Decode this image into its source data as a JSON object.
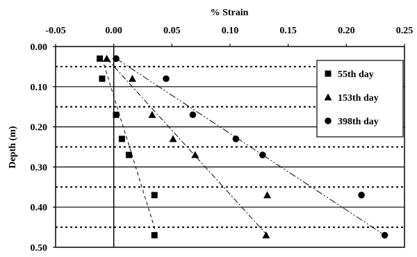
{
  "chart_data": {
    "type": "scatter",
    "xlabel": "% Strain",
    "ylabel": "Depth (m)",
    "xlim": [
      -0.05,
      0.25
    ],
    "ylim": [
      0.0,
      0.5
    ],
    "x_axis_position": "top",
    "y_inverted": true,
    "x_ticks": [
      -0.05,
      0.0,
      0.05,
      0.1,
      0.15,
      0.2,
      0.25
    ],
    "x_tick_labels": [
      "-0.05",
      "0.00",
      "0.05",
      "0.10",
      "0.15",
      "0.20",
      "0.25"
    ],
    "y_ticks": [
      0.0,
      0.1,
      0.2,
      0.3,
      0.4,
      0.5
    ],
    "y_tick_labels": [
      "0.00",
      "0.10",
      "0.20",
      "0.30",
      "0.40",
      "0.50"
    ],
    "grid": {
      "solid_y": [
        0.1,
        0.2,
        0.3,
        0.4
      ],
      "dotted_y": [
        0.05,
        0.15,
        0.25,
        0.35,
        0.45
      ]
    },
    "legend_position": "top-right",
    "series": [
      {
        "name": "55th day",
        "marker": "square",
        "points": [
          {
            "x": -0.012,
            "y": 0.03
          },
          {
            "x": -0.01,
            "y": 0.08
          },
          {
            "x": 0.002,
            "y": 0.17
          },
          {
            "x": 0.007,
            "y": 0.23
          },
          {
            "x": 0.013,
            "y": 0.27
          },
          {
            "x": 0.035,
            "y": 0.37
          },
          {
            "x": 0.035,
            "y": 0.47
          }
        ],
        "trend": {
          "x": [
            -0.01,
            0.037
          ],
          "y": [
            0.03,
            0.47
          ],
          "dash": "5,4"
        }
      },
      {
        "name": "153th day",
        "marker": "triangle",
        "points": [
          {
            "x": -0.006,
            "y": 0.03
          },
          {
            "x": 0.016,
            "y": 0.08
          },
          {
            "x": 0.033,
            "y": 0.17
          },
          {
            "x": 0.051,
            "y": 0.23
          },
          {
            "x": 0.07,
            "y": 0.27
          },
          {
            "x": 0.132,
            "y": 0.37
          },
          {
            "x": 0.131,
            "y": 0.47
          }
        ],
        "trend": {
          "x": [
            -0.006,
            0.132
          ],
          "y": [
            0.03,
            0.47
          ],
          "dash": "8,3,2,3"
        }
      },
      {
        "name": "398th day",
        "marker": "circle",
        "points": [
          {
            "x": 0.002,
            "y": 0.03
          },
          {
            "x": 0.045,
            "y": 0.08
          },
          {
            "x": 0.068,
            "y": 0.17
          },
          {
            "x": 0.105,
            "y": 0.23
          },
          {
            "x": 0.128,
            "y": 0.27
          },
          {
            "x": 0.213,
            "y": 0.37
          },
          {
            "x": 0.233,
            "y": 0.47
          }
        ],
        "trend": {
          "x": [
            0.002,
            0.233
          ],
          "y": [
            0.03,
            0.47
          ],
          "dash": "10,3,2,3,2,3"
        }
      }
    ]
  }
}
